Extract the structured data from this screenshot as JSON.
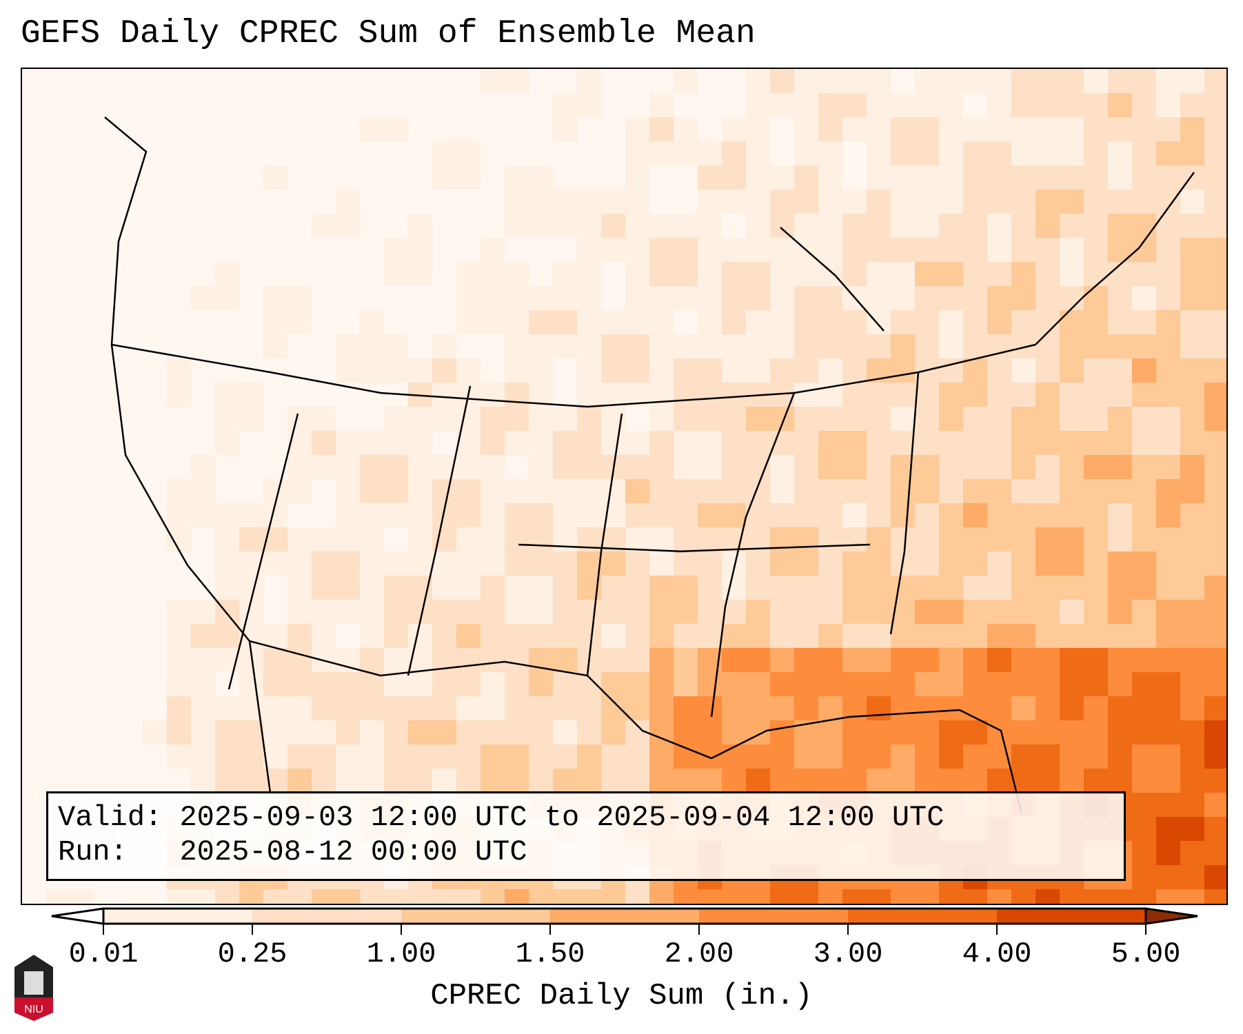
{
  "title": "GEFS Daily CPREC Sum of Ensemble Mean",
  "info": {
    "valid_label": "Valid:",
    "valid_value": "2025-09-03 12:00 UTC to 2025-09-04 12:00 UTC",
    "run_label": "Run:",
    "run_value": "2025-08-12 00:00 UTC"
  },
  "colorbar": {
    "label": "CPREC Daily Sum (in.)",
    "ticks": [
      "0.01",
      "0.25",
      "1.00",
      "1.50",
      "2.00",
      "3.00",
      "4.00",
      "5.00"
    ],
    "colors": [
      "#fef0e2",
      "#fde0c6",
      "#fdca98",
      "#fdab67",
      "#fd8c3c",
      "#f06b16",
      "#d94801",
      "#8c2d04"
    ]
  },
  "logo": {
    "text": "NIU"
  }
}
